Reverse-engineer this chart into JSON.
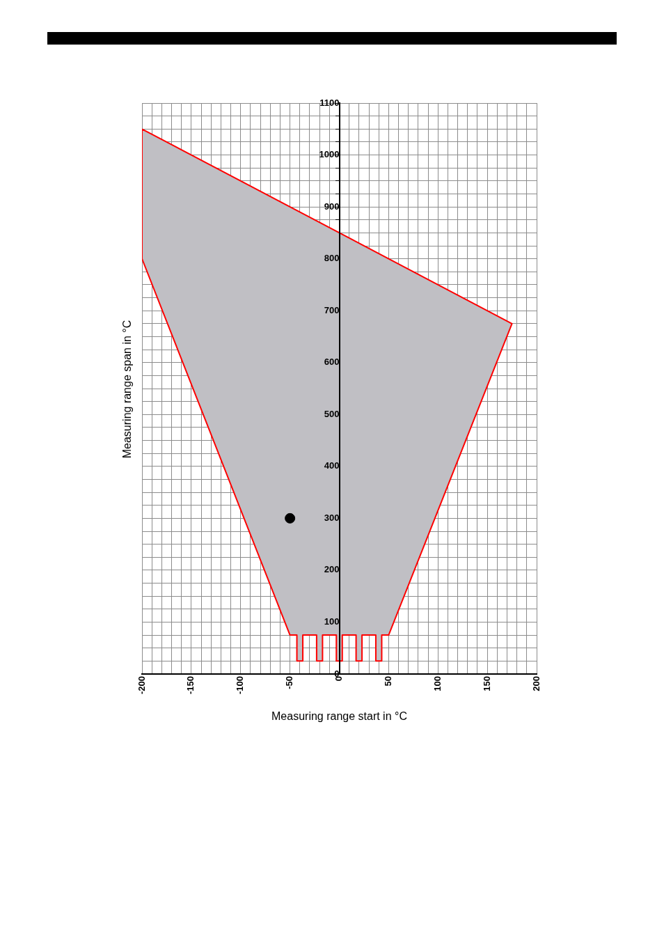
{
  "chart_data": {
    "type": "area",
    "xlabel": "Measuring range start in °C",
    "ylabel": "Measuring range span in °C",
    "xlim": [
      -200,
      200
    ],
    "ylim": [
      0,
      1100
    ],
    "xticks": [
      -200,
      {
        "value": -190,
        "label": null
      },
      {
        "value": -180,
        "label": null
      },
      {
        "value": -170,
        "label": null
      },
      {
        "value": -160,
        "label": null
      },
      -150,
      {
        "value": -140,
        "label": null
      },
      {
        "value": -130,
        "label": null
      },
      {
        "value": -120,
        "label": null
      },
      {
        "value": -110,
        "label": null
      },
      -100,
      {
        "value": -90,
        "label": null
      },
      {
        "value": -80,
        "label": null
      },
      {
        "value": -70,
        "label": null
      },
      {
        "value": -60,
        "label": null
      },
      -50,
      {
        "value": -40,
        "label": null
      },
      {
        "value": -30,
        "label": null
      },
      {
        "value": -20,
        "label": null
      },
      {
        "value": -10,
        "label": null
      },
      0,
      {
        "value": 10,
        "label": null
      },
      {
        "value": 20,
        "label": null
      },
      {
        "value": 30,
        "label": null
      },
      {
        "value": 40,
        "label": null
      },
      50,
      {
        "value": 60,
        "label": null
      },
      {
        "value": 70,
        "label": null
      },
      {
        "value": 80,
        "label": null
      },
      {
        "value": 90,
        "label": null
      },
      100,
      {
        "value": 110,
        "label": null
      },
      {
        "value": 120,
        "label": null
      },
      {
        "value": 130,
        "label": null
      },
      {
        "value": 140,
        "label": null
      },
      150,
      {
        "value": 160,
        "label": null
      },
      {
        "value": 170,
        "label": null
      },
      {
        "value": 180,
        "label": null
      },
      {
        "value": 190,
        "label": null
      },
      200
    ],
    "yticks": [
      0,
      {
        "value": 25,
        "label": null
      },
      {
        "value": 50,
        "label": null
      },
      {
        "value": 75,
        "label": null
      },
      100,
      {
        "value": 125,
        "label": null
      },
      {
        "value": 150,
        "label": null
      },
      {
        "value": 175,
        "label": null
      },
      200,
      {
        "value": 225,
        "label": null
      },
      {
        "value": 250,
        "label": null
      },
      {
        "value": 275,
        "label": null
      },
      300,
      {
        "value": 325,
        "label": null
      },
      {
        "value": 350,
        "label": null
      },
      {
        "value": 375,
        "label": null
      },
      400,
      {
        "value": 425,
        "label": null
      },
      {
        "value": 450,
        "label": null
      },
      {
        "value": 475,
        "label": null
      },
      500,
      {
        "value": 525,
        "label": null
      },
      {
        "value": 550,
        "label": null
      },
      {
        "value": 575,
        "label": null
      },
      600,
      {
        "value": 625,
        "label": null
      },
      {
        "value": 650,
        "label": null
      },
      {
        "value": 675,
        "label": null
      },
      700,
      {
        "value": 725,
        "label": null
      },
      {
        "value": 750,
        "label": null
      },
      {
        "value": 775,
        "label": null
      },
      800,
      {
        "value": 825,
        "label": null
      },
      {
        "value": 850,
        "label": null
      },
      {
        "value": 875,
        "label": null
      },
      900,
      {
        "value": 925,
        "label": null
      },
      {
        "value": 950,
        "label": null
      },
      {
        "value": 975,
        "label": null
      },
      1000,
      {
        "value": 1025,
        "label": null
      },
      {
        "value": 1050,
        "label": null
      },
      {
        "value": 1075,
        "label": null
      },
      1100
    ],
    "grid": true,
    "legend": false,
    "series": [
      {
        "type": "area",
        "color": "#ff0000",
        "x": [
          -200,
          175,
          50,
          43,
          43,
          37,
          37,
          23,
          23,
          17,
          17,
          3,
          3,
          -3,
          -3,
          -17,
          -17,
          -23,
          -23,
          -37,
          -37,
          -43,
          -43,
          -50,
          -200,
          -200
        ],
        "values": [
          1050,
          675,
          75,
          75,
          25,
          25,
          75,
          75,
          25,
          25,
          75,
          75,
          25,
          25,
          75,
          75,
          25,
          25,
          75,
          75,
          25,
          25,
          75,
          75,
          800,
          1050
        ]
      },
      {
        "type": "scatter",
        "color": "#000000",
        "marker": "circle",
        "x": [
          -50
        ],
        "values": [
          300
        ]
      }
    ]
  }
}
